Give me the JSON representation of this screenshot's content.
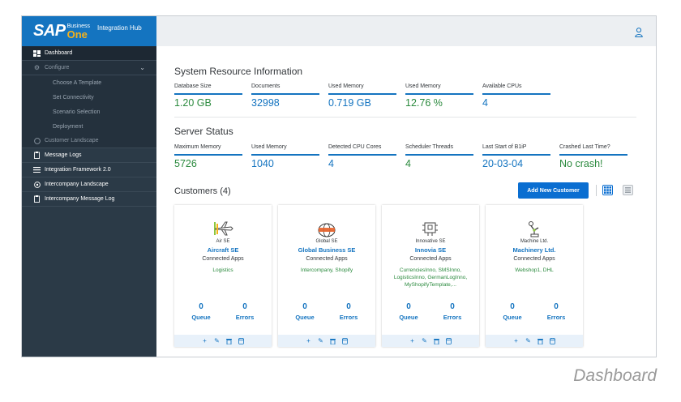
{
  "logo": {
    "brand": "SAP",
    "business": "Business",
    "one": "One",
    "hub": "Integration Hub"
  },
  "sidebar": {
    "items": [
      {
        "label": "Dashboard"
      },
      {
        "label": "Configure"
      },
      {
        "label": "Choose A Template"
      },
      {
        "label": "Set Connectivity"
      },
      {
        "label": "Scenario Selection"
      },
      {
        "label": "Deployment"
      },
      {
        "label": "Customer Landscape"
      },
      {
        "label": "Message Logs"
      },
      {
        "label": "Integration Framework 2.0"
      },
      {
        "label": "Intercompany Landscape"
      },
      {
        "label": "Intercompany Message Log"
      }
    ]
  },
  "system": {
    "title": "System Resource Information",
    "metrics": [
      {
        "label": "Database Size",
        "value": "1.20 GB"
      },
      {
        "label": "Documents",
        "value": "32998"
      },
      {
        "label": "Used Memory",
        "value": "0.719 GB"
      },
      {
        "label": "Used Memory",
        "value": "12.76 %"
      },
      {
        "label": "Available CPUs",
        "value": "4"
      }
    ]
  },
  "server": {
    "title": "Server Status",
    "metrics": [
      {
        "label": "Maximum Memory",
        "value": "5726"
      },
      {
        "label": "Used Memory",
        "value": "1040"
      },
      {
        "label": "Detected CPU Cores",
        "value": "4"
      },
      {
        "label": "Scheduler Threads",
        "value": "4"
      },
      {
        "label": "Last Start of B1iP",
        "value": "20-03-04"
      },
      {
        "label": "Crashed Last Time?",
        "value": "No crash!"
      }
    ]
  },
  "customers": {
    "title": "Customers (4)",
    "add_label": "Add New Customer",
    "apps_heading": "Connected Apps",
    "queue_label": "Queue",
    "errors_label": "Errors",
    "list": [
      {
        "logo_text": "Air SE",
        "name": "Aircraft SE",
        "apps": "Logistics",
        "queue": "0",
        "errors": "0"
      },
      {
        "logo_text": "Global SE",
        "name": "Global Business SE",
        "apps": "Intercompany,  Shopify",
        "queue": "0",
        "errors": "0"
      },
      {
        "logo_text": "Innovative SE",
        "name": "Innovia SE",
        "apps": "CurrenciesInno, SMSInno, LogisticsInno, GermanLogInno, MyShopifyTemplate,...",
        "queue": "0",
        "errors": "0"
      },
      {
        "logo_text": "Machine Ltd.",
        "name": "Machinery Ltd.",
        "apps": "Webshop1,  DHL",
        "queue": "0",
        "errors": "0"
      }
    ]
  },
  "caption": "Dashboard",
  "colors": {
    "sidebar": "#2b3a47",
    "accent": "#1474c0",
    "green": "#2b8a3e",
    "logo_yellow": "#f5b21b"
  }
}
